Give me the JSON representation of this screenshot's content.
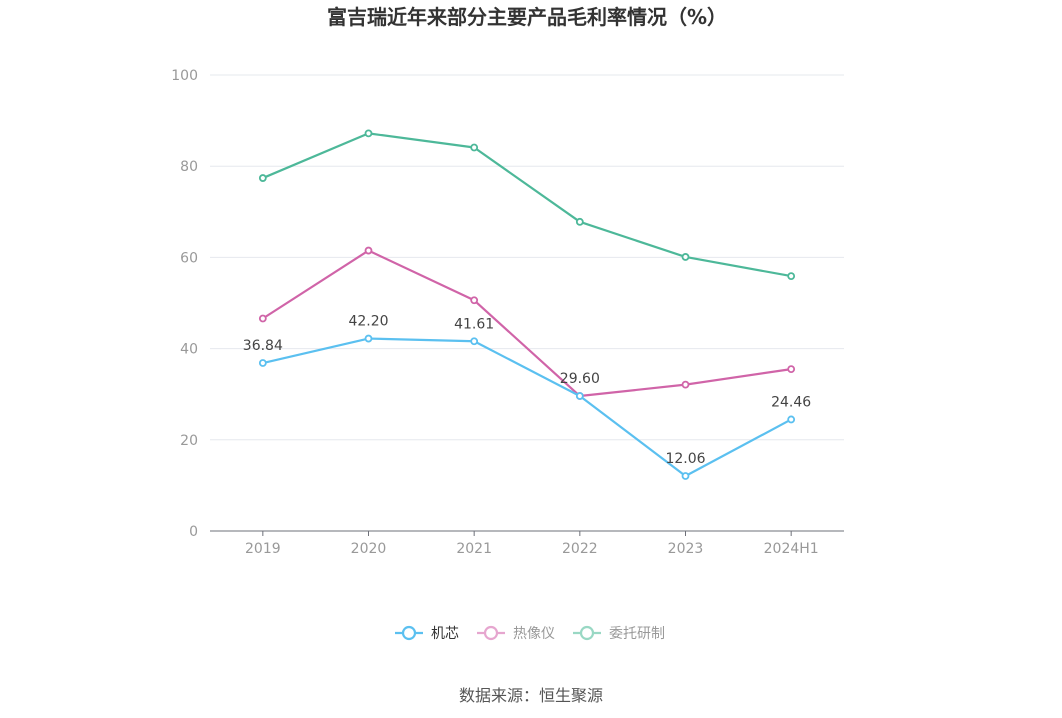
{
  "chart_data": {
    "type": "line",
    "title": "富吉瑞近年来部分主要产品毛利率情况（%）",
    "categories": [
      "2019",
      "2020",
      "2021",
      "2022",
      "2023",
      "2024H1"
    ],
    "ylim": [
      0,
      100
    ],
    "yticks": [
      0,
      20,
      40,
      60,
      80,
      100
    ],
    "grid": true,
    "legend_position": "bottom",
    "series": [
      {
        "name": "机芯",
        "color": "#5bc0f0",
        "values": [
          36.84,
          42.2,
          41.61,
          29.6,
          12.06,
          24.46
        ],
        "labels": [
          "36.84",
          "42.20",
          "41.61",
          "29.60",
          "12.06",
          "24.46"
        ],
        "legend_state": "active"
      },
      {
        "name": "热像仪",
        "color": "#d064a8",
        "values": [
          46.6,
          61.5,
          50.6,
          29.6,
          32.1,
          35.5
        ],
        "legend_state": "inactive"
      },
      {
        "name": "委托研制",
        "color": "#4db899",
        "values": [
          77.4,
          87.2,
          84.1,
          67.8,
          60.1,
          55.9
        ],
        "legend_state": "inactive"
      }
    ]
  },
  "source": "数据来源：恒生聚源"
}
